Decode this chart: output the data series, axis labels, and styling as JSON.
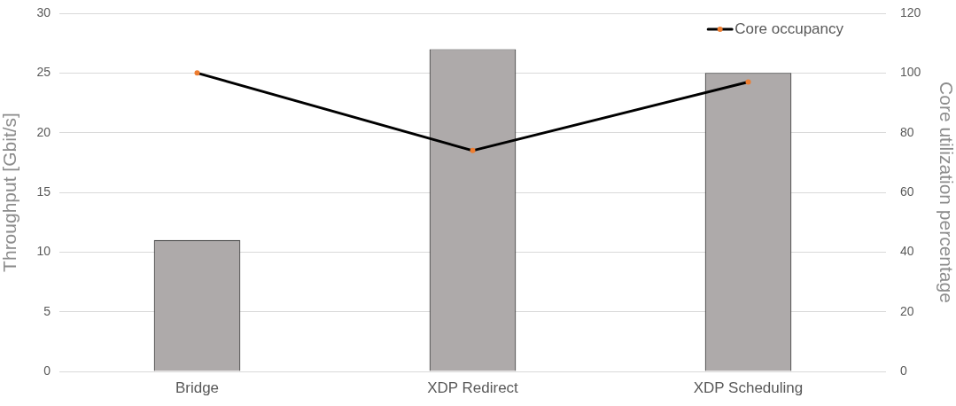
{
  "chart_data": {
    "type": "bar",
    "categories": [
      "Bridge",
      "XDP Redirect",
      "XDP Scheduling"
    ],
    "ylabel": "Throughput [Gbit/s]",
    "y2label": "Core utilization percentage",
    "series": [
      {
        "color": "#aeaaaa",
        "values": [
          11,
          27,
          25
        ]
      },
      {
        "name": "Core occupancy",
        "type": "line",
        "axis": "y2",
        "color": "#000000",
        "colors": [
          "#ed7d31",
          "#ed7d31",
          "#ed7d31"
        ],
        "values": [
          100,
          74,
          97
        ]
      }
    ],
    "ylim": [
      0,
      30
    ],
    "yticks": [
      0,
      5,
      10,
      15,
      20,
      25,
      30
    ],
    "y2lim": [
      0,
      120
    ],
    "y2ticks": [
      0,
      20,
      40,
      60,
      80,
      100,
      120
    ],
    "grid": "y",
    "legend": "top right",
    "marker": "circle"
  }
}
